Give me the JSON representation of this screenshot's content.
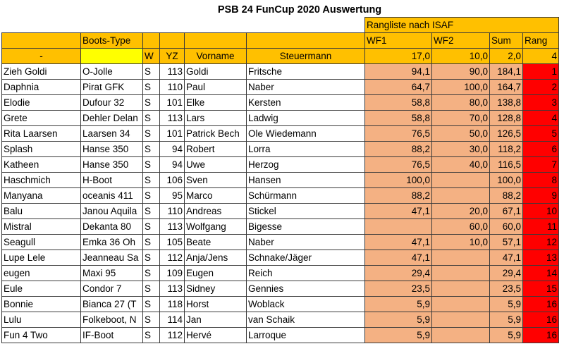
{
  "title": "PSB 24 FunCup 2020 Auswertung",
  "header": {
    "rangliste": "Rangliste nach ISAF",
    "boots_type": "Boots-Type",
    "dash": "-",
    "w": "W",
    "yz": "YZ",
    "vorname": "Vorname",
    "steuermann": "Steuermann",
    "wf1": "WF1",
    "wf2": "WF2",
    "sum": "Sum",
    "rang": "Rang",
    "stats": {
      "wf1": "17,0",
      "wf2": "10,0",
      "sum": "2,0",
      "rang": "4"
    }
  },
  "colors": {
    "header_orange": "#ffc000",
    "highlight_yellow": "#ffff00",
    "score_salmon": "#f4b183",
    "rank_red": "#ff0000"
  },
  "rows": [
    {
      "name": "Zieh Goldi",
      "boat": "O-Jolle",
      "w": "S",
      "yz": "113",
      "vorname": "Goldi",
      "steuermann": "Fritsche",
      "wf1": "94,1",
      "wf2": "90,0",
      "sum": "184,1",
      "rang": "1"
    },
    {
      "name": "Daphnia",
      "boat": "Pirat GFK",
      "w": "S",
      "yz": "110",
      "vorname": "Paul",
      "steuermann": "Naber",
      "wf1": "64,7",
      "wf2": "100,0",
      "sum": "164,7",
      "rang": "2"
    },
    {
      "name": "Elodie",
      "boat": "Dufour 32",
      "w": "S",
      "yz": "101",
      "vorname": "Elke",
      "steuermann": "Kersten",
      "wf1": "58,8",
      "wf2": "80,0",
      "sum": "138,8",
      "rang": "3"
    },
    {
      "name": "Grete",
      "boat": "Dehler Delan",
      "w": "S",
      "yz": "113",
      "vorname": "Lars",
      "steuermann": "Ladwig",
      "wf1": "58,8",
      "wf2": "70,0",
      "sum": "128,8",
      "rang": "4"
    },
    {
      "name": "Rita Laarsen",
      "boat": "Laarsen 34",
      "w": "S",
      "yz": "101",
      "vorname": "Patrick Bech",
      "steuermann": "Ole Wiedemann",
      "wf1": "76,5",
      "wf2": "50,0",
      "sum": "126,5",
      "rang": "5"
    },
    {
      "name": "Splash",
      "boat": "Hanse 350",
      "w": "S",
      "yz": "94",
      "vorname": "Robert",
      "steuermann": "Lorra",
      "wf1": "88,2",
      "wf2": "30,0",
      "sum": "118,2",
      "rang": "6"
    },
    {
      "name": "Katheen",
      "boat": "Hanse 350",
      "w": "S",
      "yz": "94",
      "vorname": "Uwe",
      "steuermann": "Herzog",
      "wf1": "76,5",
      "wf2": "40,0",
      "sum": "116,5",
      "rang": "7"
    },
    {
      "name": "Haschmich",
      "boat": "H-Boot",
      "w": "S",
      "yz": "106",
      "vorname": "Sven",
      "steuermann": "Hansen",
      "wf1": "100,0",
      "wf2": "",
      "sum": "100,0",
      "rang": "8"
    },
    {
      "name": "Manyana",
      "boat": "oceanis 411",
      "w": "S",
      "yz": "95",
      "vorname": "Marco",
      "steuermann": "Schürmann",
      "wf1": "88,2",
      "wf2": "",
      "sum": "88,2",
      "rang": "9"
    },
    {
      "name": "Balu",
      "boat": "Janou Aquila",
      "w": "S",
      "yz": "110",
      "vorname": "Andreas",
      "steuermann": "Stickel",
      "wf1": "47,1",
      "wf2": "20,0",
      "sum": "67,1",
      "rang": "10"
    },
    {
      "name": "Mistral",
      "boat": "Dekanta 80",
      "w": "S",
      "yz": "113",
      "vorname": "Wolfgang",
      "steuermann": "Bigesse",
      "wf1": "",
      "wf2": "60,0",
      "sum": "60,0",
      "rang": "11"
    },
    {
      "name": "Seagull",
      "boat": "Emka 36 Oh",
      "w": "S",
      "yz": "105",
      "vorname": "Beate",
      "steuermann": "Naber",
      "wf1": "47,1",
      "wf2": "10,0",
      "sum": "57,1",
      "rang": "12"
    },
    {
      "name": "Lupe Lele",
      "boat": "Jeanneau Sa",
      "w": "S",
      "yz": "112",
      "vorname": "Anja/Jens",
      "steuermann": "Schnake/Jäger",
      "wf1": "47,1",
      "wf2": "",
      "sum": "47,1",
      "rang": "13"
    },
    {
      "name": "eugen",
      "boat": "Maxi 95",
      "w": "S",
      "yz": "109",
      "vorname": "Eugen",
      "steuermann": "Reich",
      "wf1": "29,4",
      "wf2": "",
      "sum": "29,4",
      "rang": "14"
    },
    {
      "name": "Eule",
      "boat": "Condor 7",
      "w": "S",
      "yz": "113",
      "vorname": "Sidney",
      "steuermann": "Gennies",
      "wf1": "23,5",
      "wf2": "",
      "sum": "23,5",
      "rang": "15"
    },
    {
      "name": "Bonnie",
      "boat": "Bianca 27  (T",
      "w": "S",
      "yz": "118",
      "vorname": "Horst",
      "steuermann": "Woblack",
      "wf1": "5,9",
      "wf2": "",
      "sum": "5,9",
      "rang": "16"
    },
    {
      "name": "Lulu",
      "boat": "Folkeboot, N",
      "w": "S",
      "yz": "114",
      "vorname": "Jan",
      "steuermann": "van Schaik",
      "wf1": "5,9",
      "wf2": "",
      "sum": "5,9",
      "rang": "16"
    },
    {
      "name": "Fun 4 Two",
      "boat": "IF-Boot",
      "w": "S",
      "yz": "112",
      "vorname": "Hervé",
      "steuermann": "Larroque",
      "wf1": "5,9",
      "wf2": "",
      "sum": "5,9",
      "rang": "16"
    }
  ]
}
